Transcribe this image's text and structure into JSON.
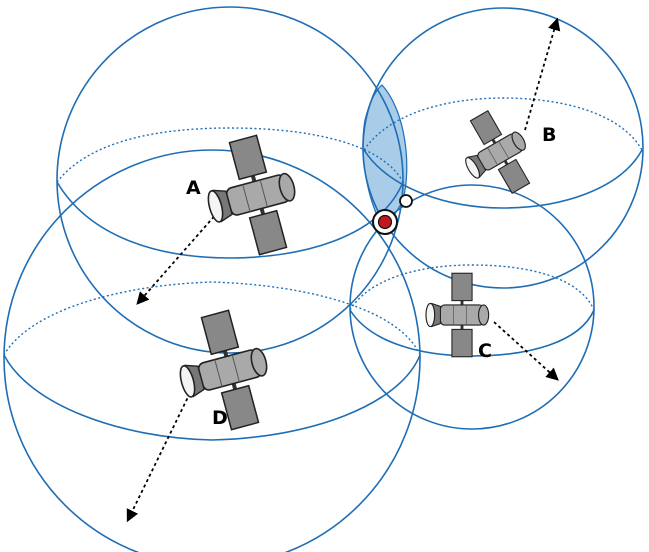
{
  "colors": {
    "sphere": "#1f6eb5",
    "intersection": "#a9cce8",
    "receiver": "#c0161c"
  },
  "satellites": [
    {
      "id": "A",
      "label": "A"
    },
    {
      "id": "B",
      "label": "B"
    },
    {
      "id": "C",
      "label": "C"
    },
    {
      "id": "D",
      "label": "D"
    }
  ],
  "icons": {
    "satellite": "satellite-icon",
    "receiver": "receiver-position-icon",
    "alternate": "alternate-solution-icon"
  }
}
